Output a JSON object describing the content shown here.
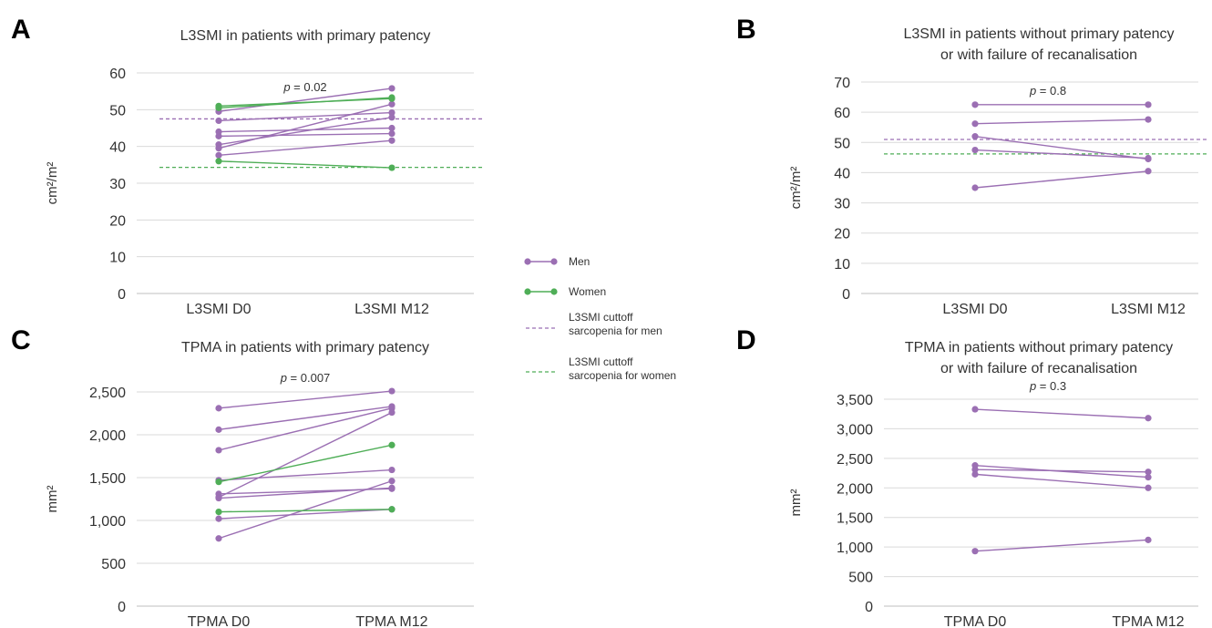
{
  "colors": {
    "men": "#9b6fb3",
    "women": "#4fae57",
    "grid": "#d9d9d9",
    "axis": "#bfbfbf",
    "text": "#333333"
  },
  "legend": {
    "men": "Men",
    "women": "Women",
    "cutoff_men": [
      "L3SMI cuttoff",
      "sarcopenia for men"
    ],
    "cutoff_women": [
      "L3SMI cuttoff",
      "sarcopenia for women"
    ]
  },
  "chart_data": [
    {
      "panel": "A",
      "type": "line",
      "title": [
        "L3SMI in patients with primary patency"
      ],
      "ylabel": "cm²/m²",
      "categories": [
        "L3SMI D0",
        "L3SMI M12"
      ],
      "ylim": [
        0,
        60
      ],
      "yticks": [
        0,
        10,
        20,
        30,
        40,
        50,
        60
      ],
      "p_value": "0.02",
      "cutoffs": {
        "men": 47.5,
        "women": 34.3
      },
      "series": [
        {
          "group": "men",
          "values": [
            49.5,
            55.8
          ]
        },
        {
          "group": "men",
          "values": [
            47.0,
            49.2
          ]
        },
        {
          "group": "men",
          "values": [
            44.0,
            45.0
          ]
        },
        {
          "group": "men",
          "values": [
            42.8,
            43.5
          ]
        },
        {
          "group": "men",
          "values": [
            40.5,
            47.9
          ]
        },
        {
          "group": "men",
          "values": [
            39.5,
            51.5
          ]
        },
        {
          "group": "men",
          "values": [
            37.6,
            41.6
          ]
        },
        {
          "group": "women",
          "values": [
            51.0,
            53.0
          ]
        },
        {
          "group": "women",
          "values": [
            50.5,
            53.3
          ]
        },
        {
          "group": "women",
          "values": [
            36.0,
            34.2
          ]
        }
      ]
    },
    {
      "panel": "B",
      "type": "line",
      "title": [
        "L3SMI in patients without primary patency",
        "or with failure of recanalisation"
      ],
      "ylabel": "cm²/m²",
      "categories": [
        "L3SMI D0",
        "L3SMI M12"
      ],
      "ylim": [
        0,
        70
      ],
      "yticks": [
        0,
        10,
        20,
        30,
        40,
        50,
        60,
        70
      ],
      "p_value": "0.8",
      "cutoffs": {
        "men": 51.0,
        "women": 46.2
      },
      "series": [
        {
          "group": "men",
          "values": [
            62.5,
            62.5
          ]
        },
        {
          "group": "men",
          "values": [
            56.2,
            57.6
          ]
        },
        {
          "group": "men",
          "values": [
            52.0,
            44.5
          ]
        },
        {
          "group": "men",
          "values": [
            47.5,
            44.8
          ]
        },
        {
          "group": "men",
          "values": [
            35.0,
            40.5
          ]
        }
      ]
    },
    {
      "panel": "C",
      "type": "line",
      "title": [
        "TPMA in patients with primary patency"
      ],
      "ylabel": "mm²",
      "categories": [
        "TPMA D0",
        "TPMA M12"
      ],
      "ylim": [
        0,
        2500
      ],
      "yticks": [
        0,
        500,
        1000,
        1500,
        2000,
        2500
      ],
      "ytick_labels": [
        "0",
        "500",
        "1,000",
        "1,500",
        "2,000",
        "2,500"
      ],
      "p_value": "0.007",
      "series": [
        {
          "group": "men",
          "values": [
            2310,
            2510
          ]
        },
        {
          "group": "men",
          "values": [
            2060,
            2330
          ]
        },
        {
          "group": "men",
          "values": [
            1820,
            2310
          ]
        },
        {
          "group": "men",
          "values": [
            1470,
            1590
          ]
        },
        {
          "group": "men",
          "values": [
            1310,
            1370
          ]
        },
        {
          "group": "men",
          "values": [
            1270,
            2260
          ]
        },
        {
          "group": "men",
          "values": [
            1260,
            1380
          ]
        },
        {
          "group": "men",
          "values": [
            1020,
            1130
          ]
        },
        {
          "group": "men",
          "values": [
            790,
            1460
          ]
        },
        {
          "group": "women",
          "values": [
            1450,
            1880
          ]
        },
        {
          "group": "women",
          "values": [
            1100,
            1130
          ]
        }
      ]
    },
    {
      "panel": "D",
      "type": "line",
      "title": [
        "TPMA in patients without primary patency",
        "or with failure of recanalisation"
      ],
      "ylabel": "mm²",
      "categories": [
        "TPMA D0",
        "TPMA M12"
      ],
      "ylim": [
        0,
        3500
      ],
      "yticks": [
        0,
        500,
        1000,
        1500,
        2000,
        2500,
        3000,
        3500
      ],
      "ytick_labels": [
        "0",
        "500",
        "1,000",
        "1,500",
        "2,000",
        "2,500",
        "3,000",
        "3,500"
      ],
      "p_value": "0.3",
      "series": [
        {
          "group": "men",
          "values": [
            3330,
            3180
          ]
        },
        {
          "group": "men",
          "values": [
            2380,
            2180
          ]
        },
        {
          "group": "men",
          "values": [
            2310,
            2270
          ]
        },
        {
          "group": "men",
          "values": [
            2230,
            2000
          ]
        },
        {
          "group": "men",
          "values": [
            930,
            1120
          ]
        }
      ]
    }
  ]
}
